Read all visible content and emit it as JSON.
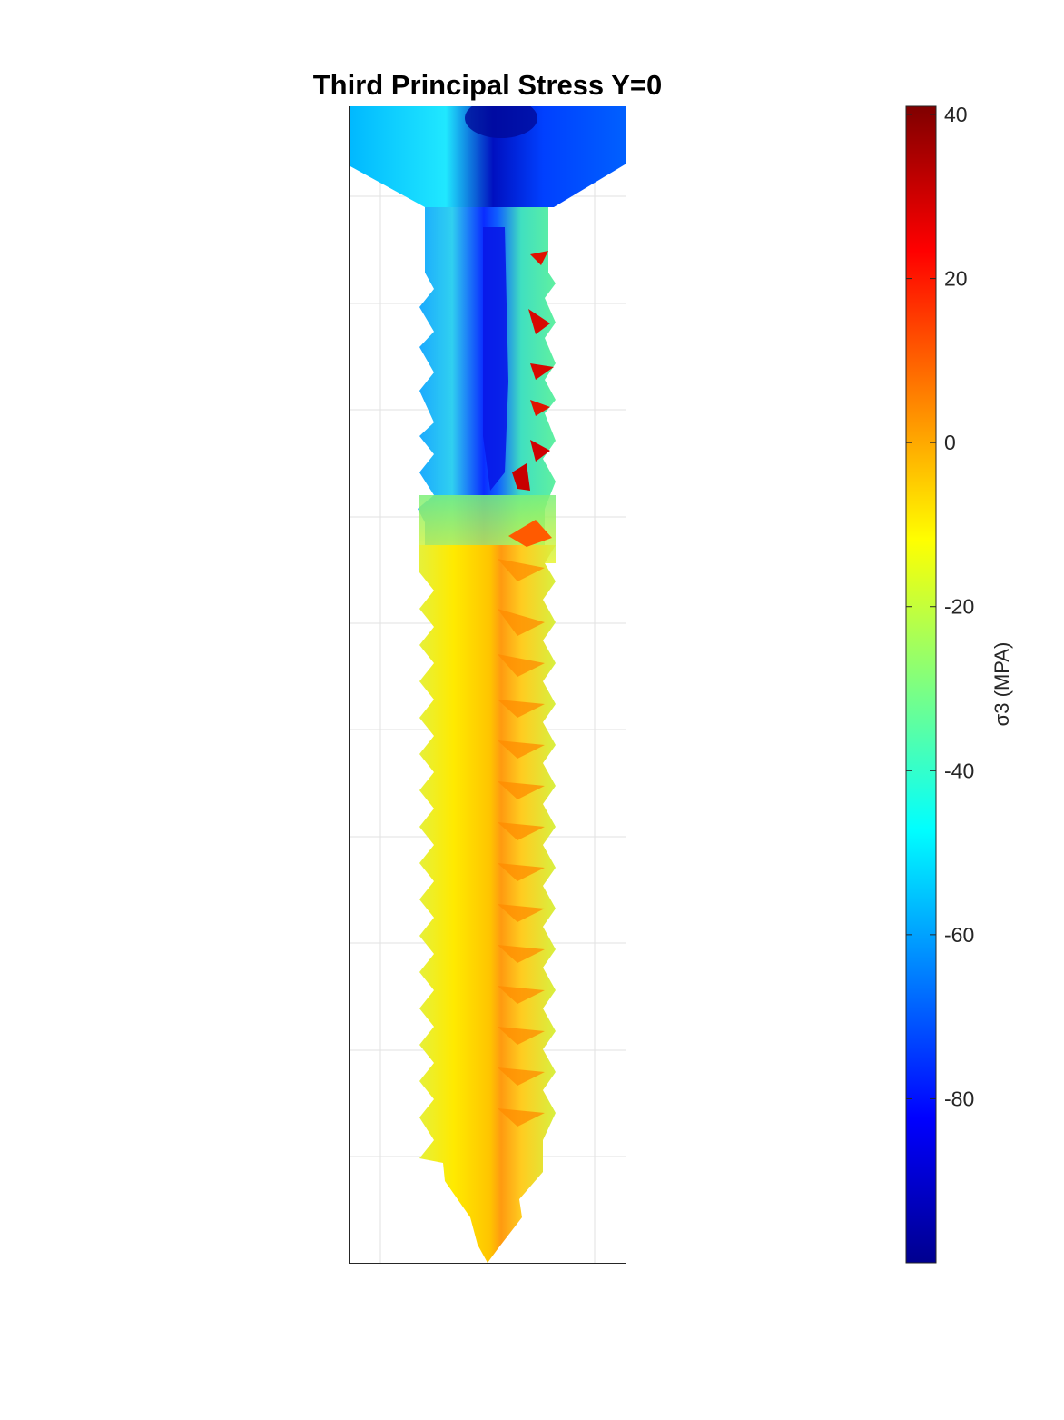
{
  "title": "Third Principal Stress Y=0",
  "colorbar": {
    "label": "σ3 (MPA)",
    "min": -100,
    "max": 41,
    "ticks": [
      40,
      20,
      0,
      -20,
      -40,
      -60,
      -80
    ],
    "colormap": "jet"
  },
  "chart_data": {
    "type": "heatmap",
    "title": "Third Principal Stress Y=0",
    "subject": "screw cross-section, stress field",
    "colorbar_label": "σ3 (MPA)",
    "value_range": [
      -100,
      41
    ],
    "colorbar_ticks": [
      40,
      20,
      0,
      -20,
      -40,
      -60,
      -80
    ],
    "grid": true,
    "axes_ticks_labeled": false,
    "regions": [
      {
        "name": "head",
        "approx_value": -55
      },
      {
        "name": "head center",
        "approx_value": -90
      },
      {
        "name": "upper shank core",
        "approx_value": -85
      },
      {
        "name": "upper shank flanks",
        "approx_value": -45
      },
      {
        "name": "upper thread tips (right)",
        "approx_value": 30
      },
      {
        "name": "lower shank core",
        "approx_value": 0
      },
      {
        "name": "lower shank flanks",
        "approx_value": -12
      },
      {
        "name": "tip",
        "approx_value": -5
      }
    ]
  }
}
